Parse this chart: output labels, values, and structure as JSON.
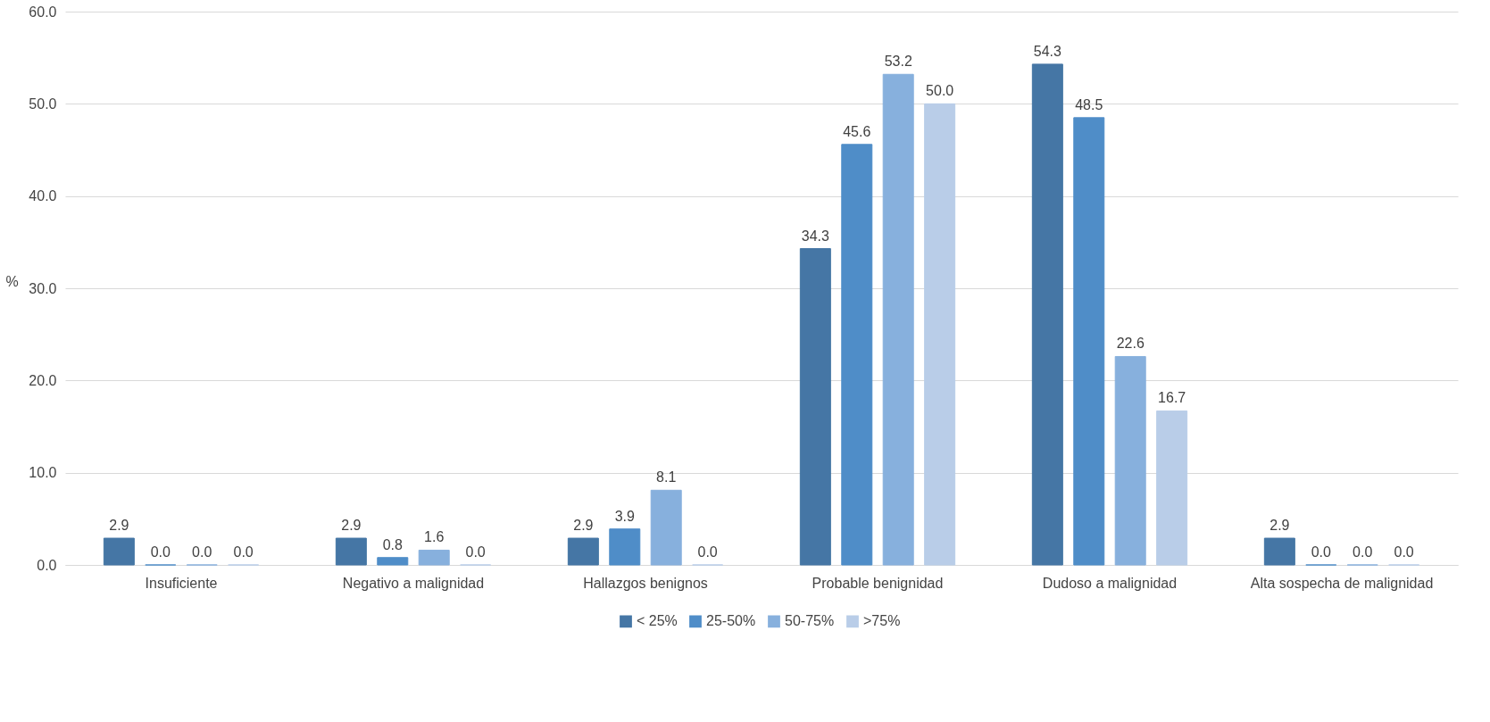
{
  "chart_data": {
    "type": "bar",
    "ylabel": "%",
    "categories": [
      "Insuficiente",
      "Negativo a malignidad",
      "Hallazgos benignos",
      "Probable benignidad",
      "Dudoso a malignidad",
      "Alta sospecha de malignidad"
    ],
    "series": [
      {
        "name": "< 25%",
        "color": "#4576a5",
        "values": [
          2.9,
          2.9,
          2.9,
          34.3,
          54.3,
          2.9
        ],
        "value_labels": [
          "2.9",
          "2.9",
          "2.9",
          "34.3",
          "54.3",
          "2.9"
        ]
      },
      {
        "name": "25-50%",
        "color": "#4f8dc8",
        "values": [
          0.0,
          0.8,
          3.9,
          45.6,
          48.5,
          0.0
        ],
        "value_labels": [
          "0.0",
          "0.8",
          "3.9",
          "45.6",
          "48.5",
          "0.0"
        ]
      },
      {
        "name": "50-75%",
        "color": "#87b0dd",
        "values": [
          0.0,
          1.6,
          8.1,
          53.2,
          22.6,
          0.0
        ],
        "value_labels": [
          "0.0",
          "1.6",
          "8.1",
          "53.2",
          "22.6",
          "0.0"
        ]
      },
      {
        "name": ">75%",
        "color": "#b9cde8",
        "values": [
          0.0,
          0.0,
          0.0,
          50.0,
          16.7,
          0.0
        ],
        "value_labels": [
          "0.0",
          "0.0",
          "0.0",
          "50.0",
          "16.7",
          "0.0"
        ]
      }
    ],
    "ylim": [
      0,
      60
    ],
    "yticks": [
      {
        "value": 0,
        "label": "0.0"
      },
      {
        "value": 10,
        "label": "10.0"
      },
      {
        "value": 20,
        "label": "20.0"
      },
      {
        "value": 30,
        "label": "30.0"
      },
      {
        "value": 40,
        "label": "40.0"
      },
      {
        "value": 50,
        "label": "50.0"
      },
      {
        "value": 60,
        "label": "60.0"
      }
    ],
    "grid": "y",
    "legend": "bottom"
  }
}
